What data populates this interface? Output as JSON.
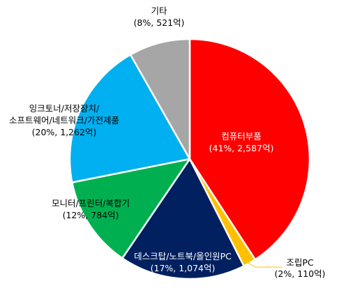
{
  "chart_data": {
    "type": "pie",
    "slices": [
      {
        "name": "컴퓨터부품",
        "detail": "(41%, 2,587억)",
        "percent": 41,
        "value": 2587,
        "color": "#ff0000",
        "label_color": "#ffffff"
      },
      {
        "name": "조립PC",
        "detail": "(2%, 110억)",
        "percent": 2,
        "value": 110,
        "color": "#ffc000",
        "label_color": "#000000"
      },
      {
        "name": "데스크탑/노트북/올인원PC",
        "detail": "(17%, 1,074억)",
        "percent": 17,
        "value": 1074,
        "color": "#002060",
        "label_color": "#ffffff"
      },
      {
        "name": "모니터/프린터/복합기",
        "detail": "(12%, 784억)",
        "percent": 12,
        "value": 784,
        "color": "#00b050",
        "label_color": "#000000"
      },
      {
        "name": "잉크토너/저장장치/소프트웨어/네트워크/가전제품",
        "detail": "(20%, 1,262억)",
        "percent": 20,
        "value": 1262,
        "color": "#00b0f0",
        "label_color": "#000000"
      },
      {
        "name": "기타",
        "detail": "(8%, 521억)",
        "percent": 8,
        "value": 521,
        "color": "#a6a6a6",
        "label_color": "#000000"
      }
    ]
  },
  "labels": {
    "computer_parts": {
      "line1": "컴퓨터부품",
      "line2": "(41%, 2,587억)"
    },
    "assembled_pc": {
      "line1": "조립PC",
      "line2": "(2%, 110억)"
    },
    "desktop": {
      "line1": "데스크탑/노트북/올인원PC",
      "line2": "(17%, 1,074억)"
    },
    "monitor": {
      "line1": "모니터/프린터/복합기",
      "line2": "(12%, 784억)"
    },
    "ink": {
      "line1": "잉크토너/저장장치/",
      "line2": "소프트웨어/네트워크/가전제품",
      "line3": "(20%, 1,262억)"
    },
    "other": {
      "line1": "기타",
      "line2": "(8%, 521억)"
    }
  }
}
